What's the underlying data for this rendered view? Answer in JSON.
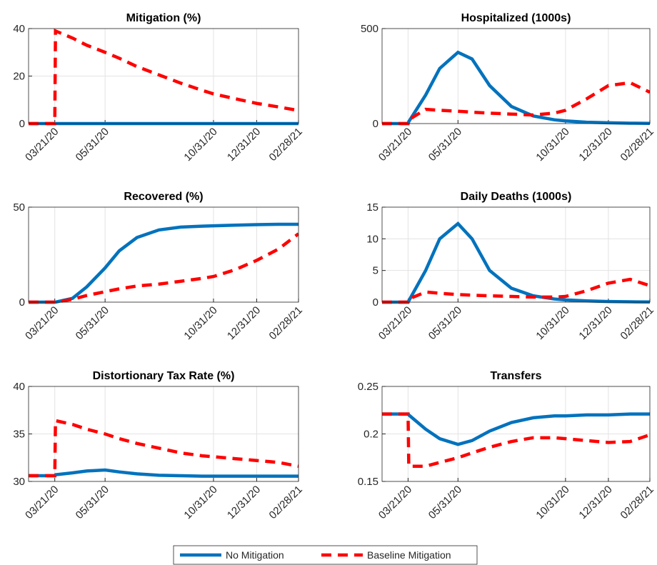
{
  "chart_data": [
    {
      "type": "line",
      "title": "Mitigation (%)",
      "grid": true,
      "x": [
        "02/13/20",
        "03/21/20",
        "03/22/20",
        "04/15/20",
        "05/05/20",
        "05/31/20",
        "06/20/20",
        "07/15/20",
        "08/15/20",
        "09/15/20",
        "10/15/20",
        "10/31/20",
        "11/30/20",
        "12/31/20",
        "01/31/21",
        "02/28/21"
      ],
      "xlim": [
        "02/13/20",
        "02/28/21"
      ],
      "xticks": [
        "03/21/20",
        "05/31/20",
        "10/31/20",
        "12/31/20",
        "02/28/21"
      ],
      "ylim": [
        0,
        40
      ],
      "yticks": [
        0,
        20,
        40
      ],
      "series": [
        {
          "name": "No Mitigation",
          "color": "#0072bd",
          "values": [
            0,
            0,
            0,
            0,
            0,
            0,
            0,
            0,
            0,
            0,
            0,
            0,
            0,
            0,
            0,
            0
          ]
        },
        {
          "name": "Baseline Mitigation",
          "color": "#ff0000",
          "values": [
            0,
            0,
            39,
            36,
            33,
            30,
            27.5,
            24,
            20.5,
            17,
            14,
            12.5,
            10.5,
            8.5,
            7,
            5.5
          ]
        }
      ]
    },
    {
      "type": "line",
      "title": "Hospitalized (1000s)",
      "grid": true,
      "x": [
        "02/13/20",
        "03/21/20",
        "03/22/20",
        "04/15/20",
        "05/05/20",
        "05/31/20",
        "06/20/20",
        "07/15/20",
        "08/15/20",
        "09/15/20",
        "10/15/20",
        "10/31/20",
        "11/30/20",
        "12/31/20",
        "01/31/21",
        "02/28/21"
      ],
      "xlim": [
        "02/13/20",
        "02/28/21"
      ],
      "xticks": [
        "03/21/20",
        "05/31/20",
        "10/31/20",
        "12/31/20",
        "02/28/21"
      ],
      "ylim": [
        0,
        500
      ],
      "yticks": [
        0,
        500
      ],
      "series": [
        {
          "name": "No Mitigation",
          "color": "#0072bd",
          "values": [
            0,
            0,
            10,
            150,
            290,
            375,
            340,
            200,
            90,
            40,
            20,
            14,
            7,
            4,
            2,
            1
          ]
        },
        {
          "name": "Baseline Mitigation",
          "color": "#ff0000",
          "values": [
            0,
            0,
            20,
            75,
            70,
            65,
            60,
            55,
            50,
            45,
            55,
            70,
            130,
            200,
            215,
            165
          ]
        }
      ]
    },
    {
      "type": "line",
      "title": "Recovered (%)",
      "grid": true,
      "x": [
        "02/13/20",
        "03/21/20",
        "03/22/20",
        "04/15/20",
        "05/05/20",
        "05/31/20",
        "06/20/20",
        "07/15/20",
        "08/15/20",
        "09/15/20",
        "10/15/20",
        "10/31/20",
        "11/30/20",
        "12/31/20",
        "01/31/21",
        "02/28/21"
      ],
      "xlim": [
        "02/13/20",
        "02/28/21"
      ],
      "xticks": [
        "03/21/20",
        "05/31/20",
        "10/31/20",
        "12/31/20",
        "02/28/21"
      ],
      "ylim": [
        0,
        50
      ],
      "yticks": [
        0,
        50
      ],
      "series": [
        {
          "name": "No Mitigation",
          "color": "#0072bd",
          "values": [
            0,
            0,
            0,
            2,
            8,
            18,
            27,
            34,
            38,
            39.5,
            40,
            40.2,
            40.5,
            40.8,
            41,
            41
          ]
        },
        {
          "name": "Baseline Mitigation",
          "color": "#ff0000",
          "values": [
            0,
            0,
            0,
            1.5,
            3.5,
            5.5,
            7,
            8.5,
            9.5,
            11,
            12.5,
            13.5,
            17,
            22,
            28,
            36
          ]
        }
      ]
    },
    {
      "type": "line",
      "title": "Daily Deaths (1000s)",
      "grid": true,
      "x": [
        "02/13/20",
        "03/21/20",
        "03/22/20",
        "04/15/20",
        "05/05/20",
        "05/31/20",
        "06/20/20",
        "07/15/20",
        "08/15/20",
        "09/15/20",
        "10/15/20",
        "10/31/20",
        "11/30/20",
        "12/31/20",
        "01/31/21",
        "02/28/21"
      ],
      "xlim": [
        "02/13/20",
        "02/28/21"
      ],
      "xticks": [
        "03/21/20",
        "05/31/20",
        "10/31/20",
        "12/31/20",
        "02/28/21"
      ],
      "ylim": [
        0,
        15
      ],
      "yticks": [
        0,
        5,
        10,
        15
      ],
      "series": [
        {
          "name": "No Mitigation",
          "color": "#0072bd",
          "values": [
            0,
            0,
            0.2,
            5,
            10,
            12.4,
            10,
            5,
            2.2,
            1,
            0.5,
            0.35,
            0.2,
            0.1,
            0.05,
            0.03
          ]
        },
        {
          "name": "Baseline Mitigation",
          "color": "#ff0000",
          "values": [
            0,
            0,
            0.5,
            1.6,
            1.4,
            1.2,
            1.1,
            1,
            0.9,
            0.8,
            0.8,
            0.9,
            1.8,
            3,
            3.6,
            2.6
          ]
        }
      ]
    },
    {
      "type": "line",
      "title": "Distortionary Tax Rate (%)",
      "grid": true,
      "x": [
        "02/13/20",
        "03/21/20",
        "03/22/20",
        "04/15/20",
        "05/05/20",
        "05/31/20",
        "06/20/20",
        "07/15/20",
        "08/15/20",
        "09/15/20",
        "10/15/20",
        "10/31/20",
        "11/30/20",
        "12/31/20",
        "01/31/21",
        "02/28/21"
      ],
      "xlim": [
        "02/13/20",
        "02/28/21"
      ],
      "xticks": [
        "03/21/20",
        "05/31/20",
        "10/31/20",
        "12/31/20",
        "02/28/21"
      ],
      "ylim": [
        30,
        40
      ],
      "yticks": [
        30,
        35,
        40
      ],
      "series": [
        {
          "name": "No Mitigation",
          "color": "#0072bd",
          "values": [
            30.6,
            30.6,
            30.7,
            30.9,
            31.1,
            31.2,
            31.0,
            30.8,
            30.65,
            30.6,
            30.55,
            30.55,
            30.55,
            30.55,
            30.55,
            30.55
          ]
        },
        {
          "name": "Baseline Mitigation",
          "color": "#ff0000",
          "values": [
            30.6,
            30.6,
            36.4,
            36,
            35.5,
            35,
            34.5,
            34,
            33.5,
            33,
            32.7,
            32.6,
            32.4,
            32.2,
            32,
            31.6
          ]
        }
      ]
    },
    {
      "type": "line",
      "title": "Transfers",
      "grid": true,
      "x": [
        "02/13/20",
        "03/21/20",
        "03/22/20",
        "04/15/20",
        "05/05/20",
        "05/31/20",
        "06/20/20",
        "07/15/20",
        "08/15/20",
        "09/15/20",
        "10/15/20",
        "10/31/20",
        "11/30/20",
        "12/31/20",
        "01/31/21",
        "02/28/21"
      ],
      "xlim": [
        "02/13/20",
        "02/28/21"
      ],
      "xticks": [
        "03/21/20",
        "05/31/20",
        "10/31/20",
        "12/31/20",
        "02/28/21"
      ],
      "ylim": [
        0.15,
        0.25
      ],
      "yticks": [
        0.15,
        0.2,
        0.25
      ],
      "series": [
        {
          "name": "No Mitigation",
          "color": "#0072bd",
          "values": [
            0.221,
            0.221,
            0.22,
            0.205,
            0.195,
            0.189,
            0.193,
            0.203,
            0.212,
            0.217,
            0.219,
            0.219,
            0.22,
            0.22,
            0.221,
            0.221
          ]
        },
        {
          "name": "Baseline Mitigation",
          "color": "#ff0000",
          "values": [
            0.221,
            0.221,
            0.166,
            0.166,
            0.17,
            0.175,
            0.18,
            0.186,
            0.192,
            0.196,
            0.196,
            0.195,
            0.193,
            0.191,
            0.192,
            0.199
          ]
        }
      ]
    }
  ]
}
